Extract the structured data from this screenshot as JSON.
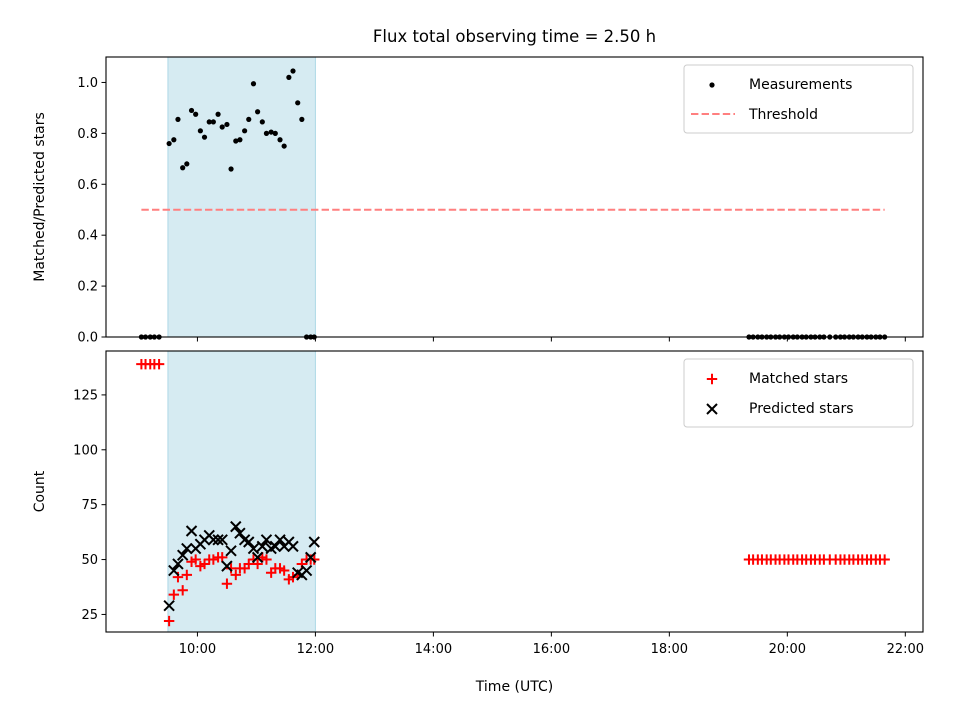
{
  "chart_data": {
    "type": "scatter",
    "title": "Flux total observing time = 2.50 h",
    "xlabel": "Time (UTC)",
    "x_ticks": [
      "10:00",
      "12:00",
      "14:00",
      "16:00",
      "18:00",
      "20:00",
      "22:00"
    ],
    "x_tick_hours": [
      10,
      12,
      14,
      16,
      18,
      20,
      22
    ],
    "xlim_hours": [
      8.45,
      22.3
    ],
    "observing_window_hours": [
      9.5,
      12.0
    ],
    "colors": {
      "window": "#add8e6",
      "measurements": "#000000",
      "threshold": "#ff7f7f",
      "matched": "#ff0000",
      "predicted": "#000000"
    },
    "panels": [
      {
        "id": "ratio",
        "ylabel": "Matched/Predicted stars",
        "ylim": [
          0,
          1.1
        ],
        "y_ticks": [
          0,
          0.2,
          0.4,
          0.6,
          0.8,
          1.0
        ],
        "y_tick_labels": [
          "0.0",
          "0.2",
          "0.4",
          "0.6",
          "0.8",
          "1.0"
        ],
        "legend": {
          "position": "upper right",
          "entries": [
            "Measurements",
            "Threshold"
          ]
        },
        "threshold": {
          "name": "Threshold",
          "value": 0.5,
          "x_start_hours": 9.05,
          "x_end_hours": 21.65
        },
        "series": [
          {
            "name": "Measurements",
            "marker": "dot",
            "x_hours": [
              9.05,
              9.12,
              9.2,
              9.27,
              9.35,
              9.52,
              9.6,
              9.67,
              9.75,
              9.82,
              9.9,
              9.97,
              10.05,
              10.12,
              10.2,
              10.27,
              10.35,
              10.42,
              10.5,
              10.57,
              10.65,
              10.72,
              10.8,
              10.87,
              10.95,
              11.02,
              11.1,
              11.17,
              11.25,
              11.32,
              11.4,
              11.47,
              11.55,
              11.62,
              11.7,
              11.77,
              11.85,
              11.92,
              11.98,
              19.35,
              19.42,
              19.5,
              19.57,
              19.65,
              19.72,
              19.8,
              19.87,
              19.95,
              20.02,
              20.1,
              20.17,
              20.25,
              20.32,
              20.4,
              20.47,
              20.55,
              20.62,
              20.72,
              20.82,
              20.9,
              20.97,
              21.05,
              21.12,
              21.2,
              21.27,
              21.35,
              21.42,
              21.5,
              21.57,
              21.65
            ],
            "y": [
              0,
              0,
              0,
              0,
              0,
              0.76,
              0.775,
              0.855,
              0.665,
              0.68,
              0.89,
              0.875,
              0.81,
              0.785,
              0.845,
              0.845,
              0.875,
              0.825,
              0.835,
              0.66,
              0.77,
              0.775,
              0.81,
              0.855,
              0.995,
              0.885,
              0.845,
              0.8,
              0.805,
              0.8,
              0.775,
              0.75,
              1.02,
              1.045,
              0.92,
              0.855,
              0,
              0,
              0,
              0,
              0,
              0,
              0,
              0,
              0,
              0,
              0,
              0,
              0,
              0,
              0,
              0,
              0,
              0,
              0,
              0,
              0,
              0,
              0,
              0,
              0,
              0,
              0,
              0,
              0,
              0,
              0,
              0,
              0,
              0
            ]
          }
        ]
      },
      {
        "id": "count",
        "ylabel": "Count",
        "ylim": [
          17,
          145
        ],
        "y_ticks": [
          25,
          50,
          75,
          100,
          125
        ],
        "y_tick_labels": [
          "25",
          "50",
          "75",
          "100",
          "125"
        ],
        "legend": {
          "position": "upper right",
          "entries": [
            "Matched stars",
            "Predicted stars"
          ]
        },
        "series": [
          {
            "name": "Matched stars",
            "marker": "plus",
            "x_hours": [
              9.05,
              9.12,
              9.2,
              9.27,
              9.35,
              9.52,
              9.6,
              9.67,
              9.75,
              9.82,
              9.9,
              9.97,
              10.05,
              10.12,
              10.2,
              10.27,
              10.35,
              10.42,
              10.5,
              10.57,
              10.65,
              10.72,
              10.8,
              10.87,
              10.95,
              11.02,
              11.1,
              11.17,
              11.25,
              11.32,
              11.4,
              11.47,
              11.55,
              11.62,
              11.7,
              11.77,
              11.85,
              11.92,
              11.98,
              19.35,
              19.42,
              19.5,
              19.57,
              19.65,
              19.72,
              19.8,
              19.87,
              19.95,
              20.02,
              20.1,
              20.17,
              20.25,
              20.32,
              20.4,
              20.47,
              20.55,
              20.62,
              20.72,
              20.82,
              20.9,
              20.97,
              21.05,
              21.12,
              21.2,
              21.27,
              21.35,
              21.42,
              21.5,
              21.57,
              21.65
            ],
            "y": [
              139,
              139,
              139,
              139,
              139,
              22,
              34,
              42,
              36,
              43,
              49,
              50,
              47,
              48,
              50,
              50,
              51,
              51,
              39,
              46,
              43,
              46,
              46,
              48,
              50,
              48,
              51,
              50,
              44,
              46,
              46,
              45,
              41,
              42,
              43,
              48,
              50,
              50,
              50,
              50,
              50,
              50,
              50,
              50,
              50,
              50,
              50,
              50,
              50,
              50,
              50,
              50,
              50,
              50,
              50,
              50,
              50,
              50,
              50,
              50,
              50,
              50,
              50,
              50,
              50,
              50,
              50,
              50,
              50,
              50
            ]
          },
          {
            "name": "Predicted stars",
            "marker": "x",
            "x_hours": [
              9.52,
              9.6,
              9.67,
              9.75,
              9.82,
              9.9,
              9.97,
              10.05,
              10.12,
              10.2,
              10.27,
              10.35,
              10.42,
              10.5,
              10.57,
              10.65,
              10.72,
              10.8,
              10.87,
              10.95,
              11.02,
              11.1,
              11.17,
              11.25,
              11.32,
              11.4,
              11.47,
              11.55,
              11.62,
              11.7,
              11.77,
              11.85,
              11.92,
              11.98
            ],
            "y": [
              29,
              45,
              48,
              52,
              55,
              63,
              55,
              57,
              59,
              61,
              59,
              59,
              59,
              47,
              54,
              65,
              62,
              59,
              58,
              55,
              51,
              56,
              59,
              55,
              56,
              59,
              56,
              58,
              56,
              44,
              43,
              45,
              51,
              58
            ]
          }
        ]
      }
    ]
  }
}
